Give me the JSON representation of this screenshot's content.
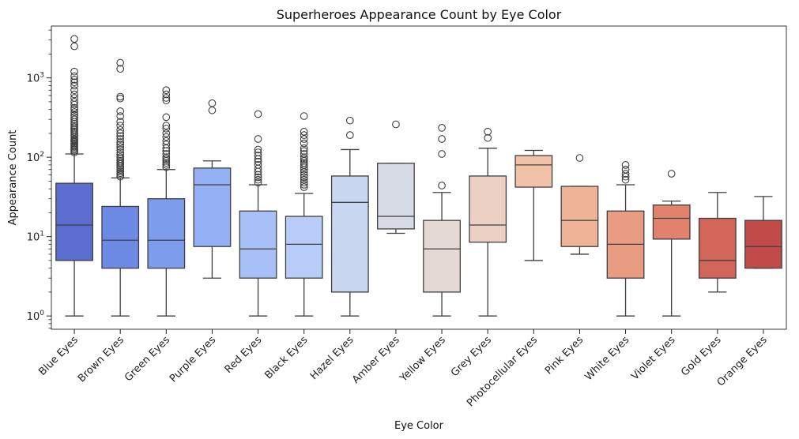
{
  "chart_data": {
    "type": "box",
    "title": "Superheroes Appearance Count by Eye Color",
    "xlabel": "Eye Color",
    "ylabel": "Appearance Count",
    "yscale": "log",
    "ylim": [
      0.68,
      4500
    ],
    "yticks": [
      {
        "value": 1,
        "base": "10",
        "exp": "0"
      },
      {
        "value": 10,
        "base": "10",
        "exp": "1"
      },
      {
        "value": 100,
        "base": "10",
        "exp": "2"
      },
      {
        "value": 1000,
        "base": "10",
        "exp": "3"
      }
    ],
    "grid": false,
    "categories": [
      {
        "label": "Blue Eyes",
        "color": "#5b6ecf",
        "whislo": 1,
        "q1": 5,
        "med": 14,
        "q3": 47,
        "whishi": 110,
        "fliers": [
          115,
          120,
          125,
          130,
          135,
          140,
          145,
          150,
          155,
          160,
          165,
          170,
          180,
          190,
          200,
          210,
          220,
          230,
          240,
          250,
          265,
          280,
          300,
          320,
          340,
          370,
          400,
          420,
          460,
          500,
          560,
          620,
          700,
          800,
          880,
          950,
          1050,
          1200,
          2500,
          3100
        ]
      },
      {
        "label": "Brown Eyes",
        "color": "#6c8ae4",
        "whislo": 1,
        "q1": 4,
        "med": 9,
        "q3": 24,
        "whishi": 55,
        "fliers": [
          57,
          60,
          63,
          66,
          70,
          74,
          78,
          82,
          86,
          90,
          95,
          100,
          108,
          115,
          125,
          135,
          145,
          155,
          170,
          185,
          200,
          220,
          250,
          280,
          330,
          380,
          550,
          580,
          1300,
          1550
        ]
      },
      {
        "label": "Green Eyes",
        "color": "#7d9cec",
        "whislo": 1,
        "q1": 4,
        "med": 9,
        "q3": 30,
        "whishi": 70,
        "fliers": [
          75,
          80,
          85,
          90,
          95,
          100,
          110,
          120,
          130,
          145,
          160,
          180,
          200,
          230,
          250,
          320,
          520,
          560,
          620,
          700
        ]
      },
      {
        "label": "Purple Eyes",
        "color": "#93b1f4",
        "whislo": 3,
        "q1": 7.5,
        "med": 45,
        "q3": 73,
        "whishi": 90,
        "fliers": [
          390,
          480
        ]
      },
      {
        "label": "Red Eyes",
        "color": "#a7c0f7",
        "whislo": 1,
        "q1": 3,
        "med": 7,
        "q3": 21,
        "whishi": 45,
        "fliers": [
          48,
          52,
          56,
          60,
          66,
          72,
          80,
          88,
          95,
          105,
          115,
          125,
          170,
          350
        ]
      },
      {
        "label": "Black Eyes",
        "color": "#b7cdf8",
        "whislo": 1,
        "q1": 3,
        "med": 8,
        "q3": 18,
        "whishi": 35,
        "fliers": [
          42,
          45,
          48,
          52,
          56,
          60,
          65,
          70,
          75,
          80,
          85,
          90,
          95,
          100,
          110,
          120,
          130,
          150,
          170,
          190,
          210,
          330
        ]
      },
      {
        "label": "Hazel Eyes",
        "color": "#c9d8f0",
        "whislo": 1,
        "q1": 2,
        "med": 27,
        "q3": 58,
        "whishi": 125,
        "fliers": [
          190,
          290
        ]
      },
      {
        "label": "Amber Eyes",
        "color": "#d6dbe6",
        "whislo": 11,
        "q1": 12.5,
        "med": 18,
        "q3": 84,
        "whishi": 84,
        "fliers": [
          260
        ]
      },
      {
        "label": "Yellow Eyes",
        "color": "#e5d9d5",
        "whislo": 1,
        "q1": 2,
        "med": 7,
        "q3": 16,
        "whishi": 36,
        "fliers": [
          44,
          110,
          170,
          235
        ]
      },
      {
        "label": "Grey Eyes",
        "color": "#ecd0c3",
        "whislo": 1,
        "q1": 8.5,
        "med": 14,
        "q3": 58,
        "whishi": 130,
        "fliers": [
          175,
          210
        ]
      },
      {
        "label": "Photocellular Eyes",
        "color": "#f2c2a8",
        "whislo": 5,
        "q1": 42,
        "med": 80,
        "q3": 105,
        "whishi": 122,
        "fliers": []
      },
      {
        "label": "Pink Eyes",
        "color": "#efb398",
        "whislo": 6,
        "q1": 7.5,
        "med": 16,
        "q3": 43,
        "whishi": 43,
        "fliers": [
          98
        ]
      },
      {
        "label": "White Eyes",
        "color": "#e89c82",
        "whislo": 1,
        "q1": 3,
        "med": 8,
        "q3": 21,
        "whishi": 45,
        "fliers": [
          52,
          57,
          62,
          70,
          80
        ]
      },
      {
        "label": "Violet Eyes",
        "color": "#e0826d",
        "whislo": 1,
        "q1": 9.3,
        "med": 17,
        "q3": 25,
        "whishi": 28,
        "fliers": [
          62
        ]
      },
      {
        "label": "Gold Eyes",
        "color": "#d2655a",
        "whislo": 2,
        "q1": 3,
        "med": 5,
        "q3": 17,
        "whishi": 36,
        "fliers": []
      },
      {
        "label": "Orange Eyes",
        "color": "#c24a48",
        "whislo": 4,
        "q1": 4,
        "med": 7.5,
        "q3": 16,
        "whishi": 32,
        "fliers": []
      }
    ]
  }
}
